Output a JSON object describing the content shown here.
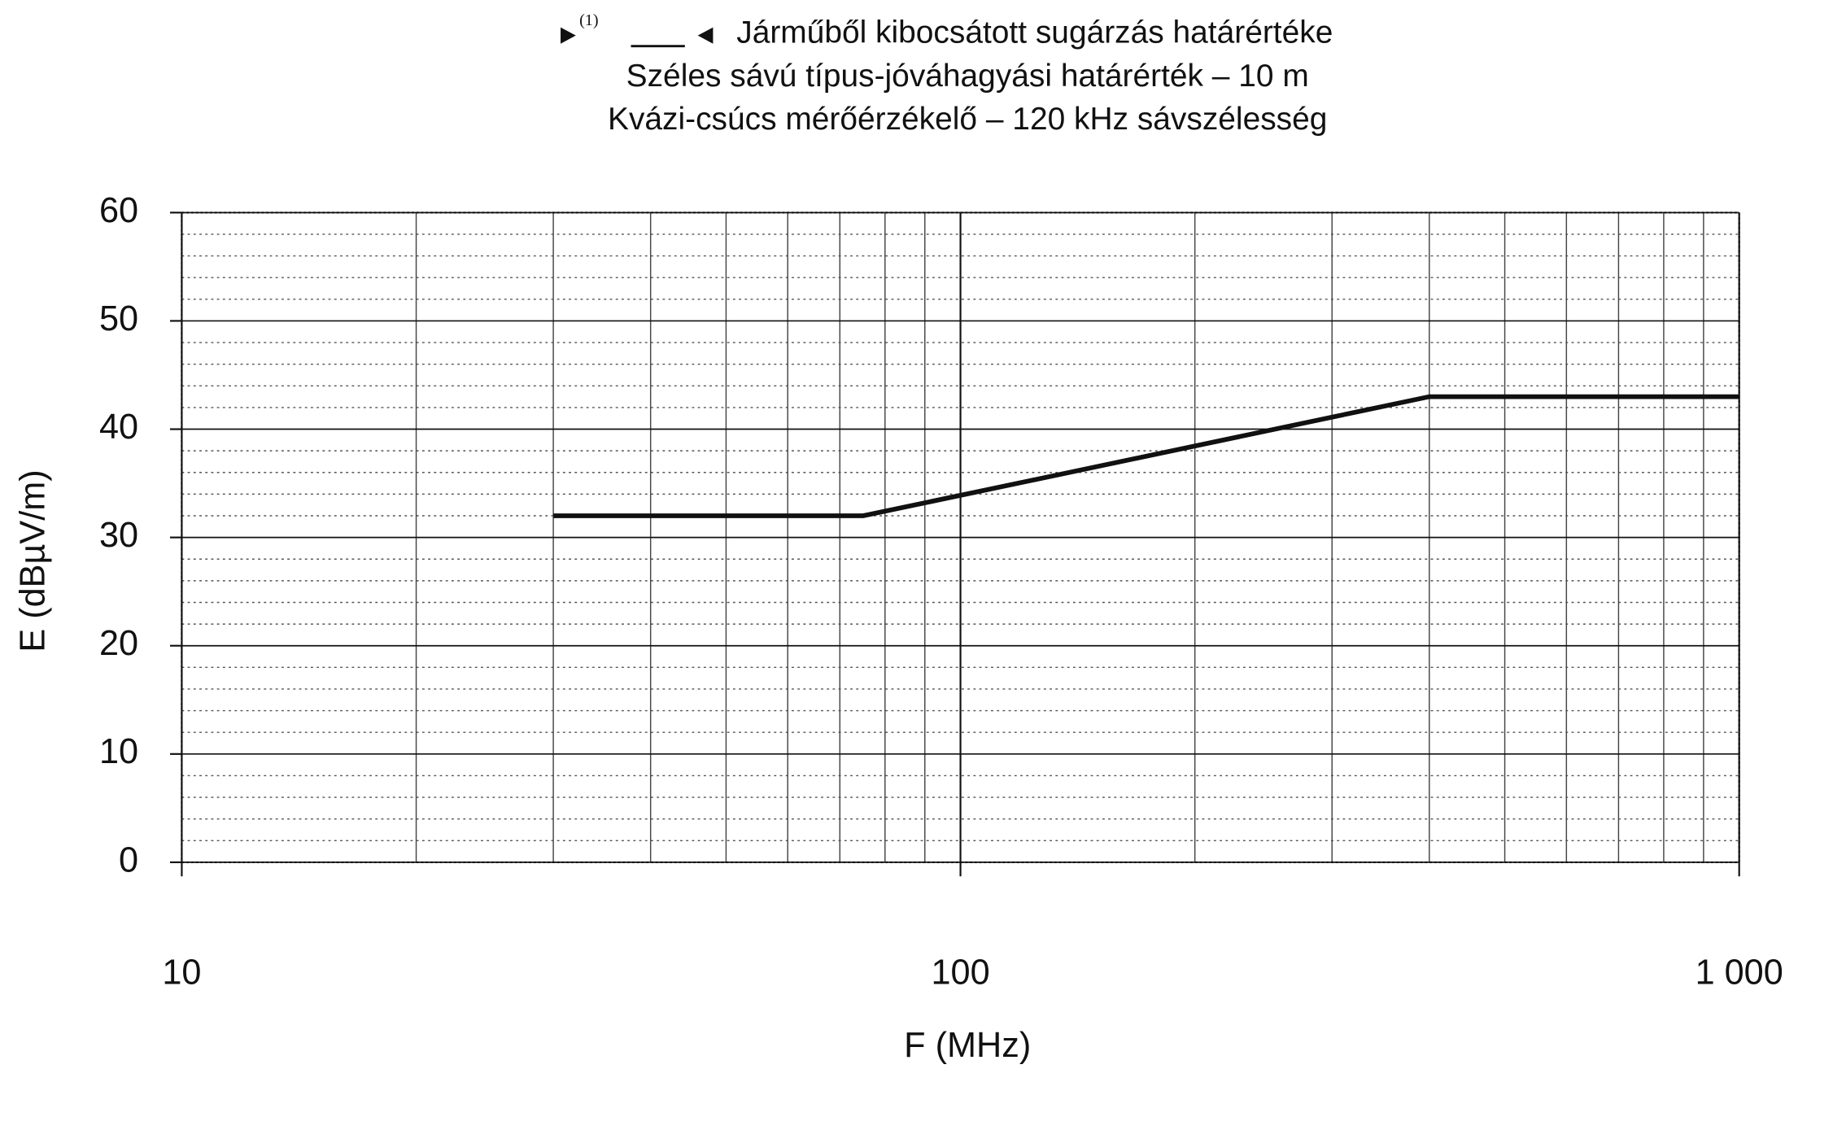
{
  "chart_data": {
    "type": "line",
    "amendment_ref": "(1)",
    "title": "Járműből kibocsátott sugárzás határértéke",
    "subtitle": [
      "Széles sávú típus-jóváhagyási határérték – 10 m",
      "Kvázi-csúcs mérőérzékelő – 120 kHz sávszélesség"
    ],
    "x_label": "F (MHz)",
    "y_label": "E (dBµV/m)",
    "x": [
      30,
      75,
      400,
      1000
    ],
    "values": [
      32,
      32,
      43,
      43
    ],
    "color": "#111111",
    "x_log": true,
    "xlim": [
      10,
      1000
    ],
    "xticks": [
      10,
      100,
      {
        "value": 1000,
        "label": "1 000"
      }
    ],
    "ylim": [
      0,
      60
    ],
    "yticks": [
      0,
      10,
      20,
      30,
      40,
      50,
      60
    ],
    "minor_xgrid": [
      20,
      30,
      40,
      50,
      60,
      70,
      80,
      90,
      200,
      300,
      400,
      500,
      600,
      700,
      800,
      900
    ],
    "minor_ygrid": [
      2,
      4,
      6,
      8,
      12,
      14,
      16,
      18,
      22,
      24,
      26,
      28,
      32,
      34,
      36,
      38,
      42,
      44,
      46,
      48,
      52,
      54,
      56,
      58
    ],
    "grid": true
  }
}
